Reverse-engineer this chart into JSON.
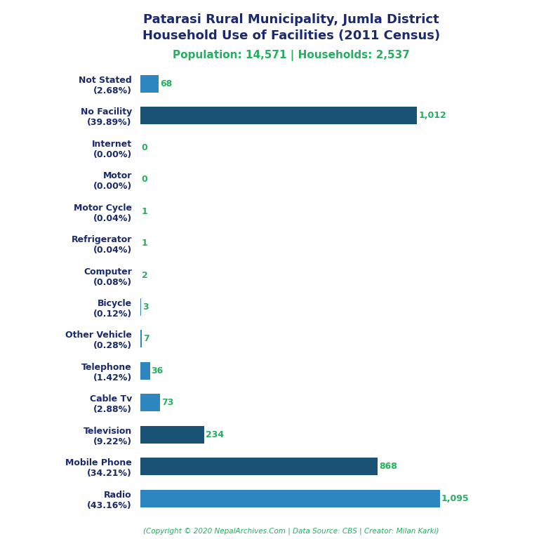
{
  "title_line1": "Patarasi Rural Municipality, Jumla District",
  "title_line2": "Household Use of Facilities (2011 Census)",
  "subtitle": "Population: 14,571 | Households: 2,537",
  "copyright": "(Copyright © 2020 NepalArchives.Com | Data Source: CBS | Creator: Milan Karki)",
  "categories": [
    "Not Stated\n(2.68%)",
    "No Facility\n(39.89%)",
    "Internet\n(0.00%)",
    "Motor\n(0.00%)",
    "Motor Cycle\n(0.04%)",
    "Refrigerator\n(0.04%)",
    "Computer\n(0.08%)",
    "Bicycle\n(0.12%)",
    "Other Vehicle\n(0.28%)",
    "Telephone\n(1.42%)",
    "Cable Tv\n(2.88%)",
    "Television\n(9.22%)",
    "Mobile Phone\n(34.21%)",
    "Radio\n(43.16%)"
  ],
  "values": [
    68,
    1012,
    0,
    0,
    1,
    1,
    2,
    3,
    7,
    36,
    73,
    234,
    868,
    1095
  ],
  "value_labels": [
    "68",
    "1,012",
    "0",
    "0",
    "1",
    "1",
    "2",
    "3",
    "7",
    "36",
    "73",
    "234",
    "868",
    "1,095"
  ],
  "bar_colors": [
    "#2E86C1",
    "#1A5276",
    "#2E86C1",
    "#2E86C1",
    "#2E86C1",
    "#2E86C1",
    "#2E86C1",
    "#2E86C1",
    "#2E86C1",
    "#2E86C1",
    "#2E86C1",
    "#1A5276",
    "#1A5276",
    "#2E86C1"
  ],
  "value_color": "#27AE60",
  "title_color": "#1A2A6C",
  "subtitle_color": "#27AE60",
  "copyright_color": "#27AE60",
  "label_color": "#1A2A6C",
  "background_color": "#FFFFFF",
  "xlim": [
    0,
    1300
  ]
}
